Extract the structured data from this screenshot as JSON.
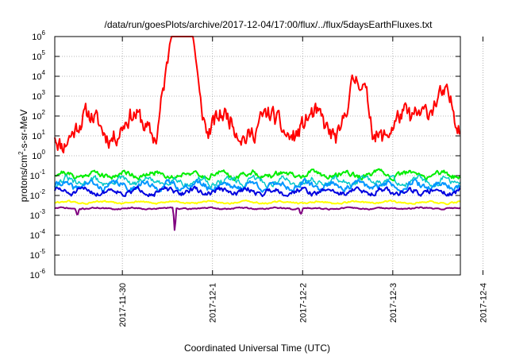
{
  "chart_data": {
    "type": "line",
    "title": "/data/run/goesPlots/archive/2017-12-04/17:00/flux/../flux/5daysEarthFluxes.txt",
    "xlabel": "Coordinated Universal Time (UTC)",
    "ylabel_base": "protons/cm",
    "ylabel_sup": "2",
    "ylabel_rest": "-s-sr-MeV",
    "yscale": "log",
    "ylim": [
      1e-06,
      1000000.0
    ],
    "xlim_days": [
      -0.75,
      3.75
    ],
    "x_ticks": [
      {
        "label": "2017-11-30",
        "day": 0
      },
      {
        "label": "2017-12-1",
        "day": 1
      },
      {
        "label": "2017-12-2",
        "day": 2
      },
      {
        "label": "2017-12-3",
        "day": 3
      },
      {
        "label": "2017-12-4",
        "day": 4
      }
    ],
    "y_ticks": [
      {
        "base": "10",
        "exp": "6",
        "v": 6
      },
      {
        "base": "10",
        "exp": "5",
        "v": 5
      },
      {
        "base": "10",
        "exp": "4",
        "v": 4
      },
      {
        "base": "10",
        "exp": "3",
        "v": 3
      },
      {
        "base": "10",
        "exp": "2",
        "v": 2
      },
      {
        "base": "10",
        "exp": "1",
        "v": 1
      },
      {
        "base": "10",
        "exp": "0",
        "v": 0
      },
      {
        "base": "10",
        "exp": "-1",
        "v": -1
      },
      {
        "base": "10",
        "exp": "-2",
        "v": -2
      },
      {
        "base": "10",
        "exp": "-3",
        "v": -3
      },
      {
        "base": "10",
        "exp": "-4",
        "v": -4
      },
      {
        "base": "10",
        "exp": "-5",
        "v": -5
      },
      {
        "base": "10",
        "exp": "-6",
        "v": -6
      }
    ],
    "grid": true,
    "series": [
      {
        "color": "#ff0000",
        "width": 2,
        "base": 1.5,
        "amp": 0.6,
        "period": 0.5,
        "noise": 0.45,
        "seed": 11,
        "events": [
          [
            0.62,
            0.24,
            4.1
          ],
          [
            0.72,
            0.22,
            3.0
          ],
          [
            2.6,
            0.18,
            1.8
          ],
          [
            3.45,
            0.25,
            1.4
          ],
          [
            -0.7,
            0.1,
            -0.5
          ]
        ]
      },
      {
        "color": "#00ee00",
        "width": 2,
        "base": -0.95,
        "amp": 0.12,
        "period": 0.35,
        "noise": 0.12,
        "seed": 21,
        "events": []
      },
      {
        "color": "#00c8c8",
        "width": 1.5,
        "base": -1.3,
        "amp": 0.15,
        "period": 0.3,
        "noise": 0.15,
        "seed": 31,
        "events": []
      },
      {
        "color": "#0096ff",
        "width": 2,
        "base": -1.5,
        "amp": 0.15,
        "period": 0.3,
        "noise": 0.14,
        "seed": 41,
        "events": []
      },
      {
        "color": "#0000e0",
        "width": 2,
        "base": -1.8,
        "amp": 0.12,
        "period": 0.3,
        "noise": 0.12,
        "seed": 51,
        "events": []
      },
      {
        "color": "#ffff00",
        "width": 2,
        "base": -2.35,
        "amp": 0.05,
        "period": 0.4,
        "noise": 0.04,
        "seed": 61,
        "events": []
      },
      {
        "color": "#800080",
        "width": 2,
        "base": -2.65,
        "amp": 0.03,
        "period": 0.4,
        "noise": 0.03,
        "seed": 71,
        "events": [
          [
            0.58,
            0.015,
            -1.1
          ],
          [
            -0.5,
            0.02,
            -0.3
          ],
          [
            1.98,
            0.02,
            -0.25
          ]
        ]
      }
    ]
  }
}
